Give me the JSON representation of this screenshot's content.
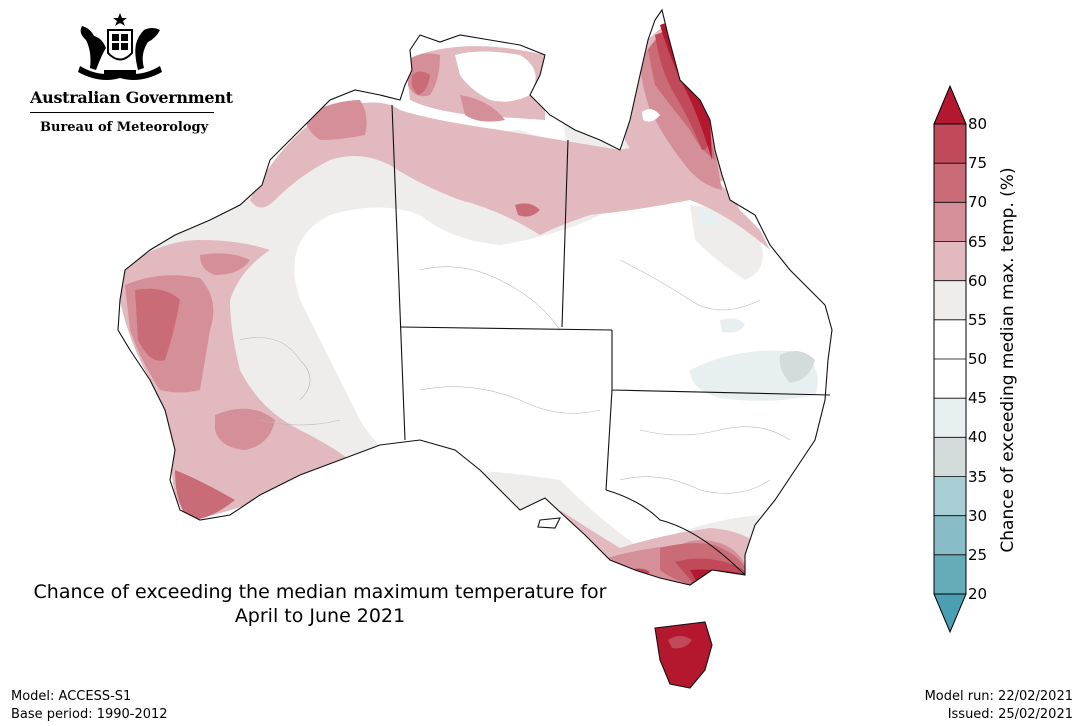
{
  "branding": {
    "government": "Australian Government",
    "agency": "Bureau of Meteorology",
    "crest_icon": "commonwealth-coat-of-arms-icon"
  },
  "map": {
    "title_line1": "Chance of exceeding the median maximum temperature for",
    "title_line2": "April to June 2021",
    "model": "Model: ACCESS-S1",
    "base_period": "Base period: 1990-2012",
    "model_run": "Model run: 22/02/2021",
    "issued": "Issued: 25/02/2021"
  },
  "colorbar": {
    "title": "Chance of exceeding median max. temp. (%)",
    "ticks": [
      "20",
      "25",
      "30",
      "35",
      "40",
      "45",
      "50",
      "55",
      "60",
      "65",
      "70",
      "75",
      "80"
    ],
    "bands": [
      {
        "from": 20,
        "to": 25,
        "color": "#66abb8"
      },
      {
        "from": 25,
        "to": 30,
        "color": "#88bcc7"
      },
      {
        "from": 30,
        "to": 35,
        "color": "#a8cdd3"
      },
      {
        "from": 35,
        "to": 40,
        "color": "#d3dbdb"
      },
      {
        "from": 40,
        "to": 45,
        "color": "#e8eff0"
      },
      {
        "from": 45,
        "to": 50,
        "color": "#ffffff"
      },
      {
        "from": 50,
        "to": 55,
        "color": "#ffffff"
      },
      {
        "from": 55,
        "to": 60,
        "color": "#eeedec"
      },
      {
        "from": 60,
        "to": 65,
        "color": "#e2b9be"
      },
      {
        "from": 65,
        "to": 70,
        "color": "#d58f98"
      },
      {
        "from": 70,
        "to": 75,
        "color": "#c96c78"
      },
      {
        "from": 75,
        "to": 80,
        "color": "#c04a5a"
      }
    ],
    "above_color": "#b4182f",
    "below_color": "#4aa0b2"
  }
}
